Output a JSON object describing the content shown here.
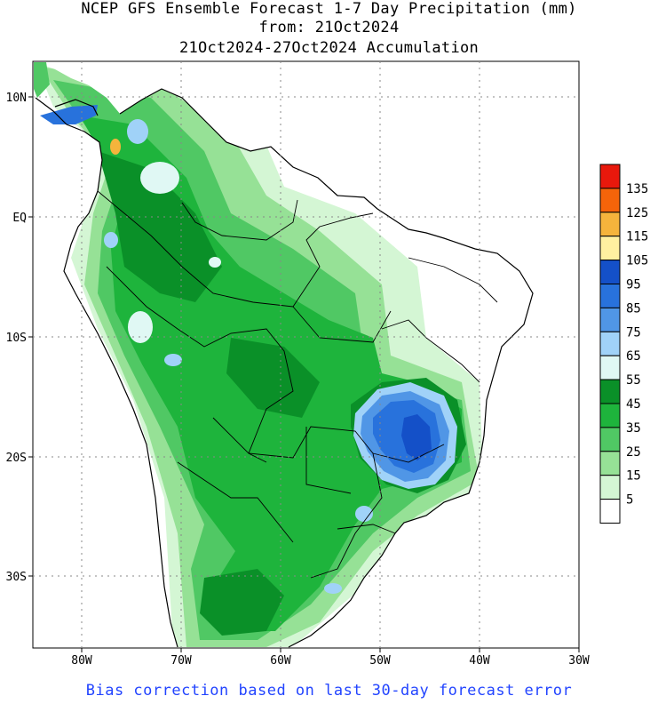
{
  "header": {
    "line1": "NCEP GFS Ensemble Forecast 1-7 Day Precipitation (mm)",
    "line2": "from: 21Oct2024",
    "line3": "21Oct2024-27Oct2024 Accumulation"
  },
  "axes": {
    "lon_labels": [
      "80W",
      "70W",
      "60W",
      "50W",
      "40W",
      "30W"
    ],
    "lat_labels": [
      "10N",
      "EQ",
      "10S",
      "20S",
      "30S"
    ]
  },
  "legend": {
    "entries": [
      {
        "label": "135",
        "color": "#e8180c"
      },
      {
        "label": "125",
        "color": "#f5640a"
      },
      {
        "label": "115",
        "color": "#f5b43c"
      },
      {
        "label": "105",
        "color": "#fff0a0"
      },
      {
        "label": "95",
        "color": "#1450c8"
      },
      {
        "label": "85",
        "color": "#2872dc"
      },
      {
        "label": "75",
        "color": "#5096e6"
      },
      {
        "label": "65",
        "color": "#a0d2f8"
      },
      {
        "label": "55",
        "color": "#e0f8f4"
      },
      {
        "label": "45",
        "color": "#0a9028"
      },
      {
        "label": "35",
        "color": "#1eb43c"
      },
      {
        "label": "25",
        "color": "#50c864"
      },
      {
        "label": "15",
        "color": "#96e196"
      },
      {
        "label": "5",
        "color": "#d4f6d4"
      },
      {
        "label": "",
        "color": "#ffffff"
      }
    ]
  },
  "footer": {
    "note": "Bias correction based on last 30-day forecast error"
  }
}
